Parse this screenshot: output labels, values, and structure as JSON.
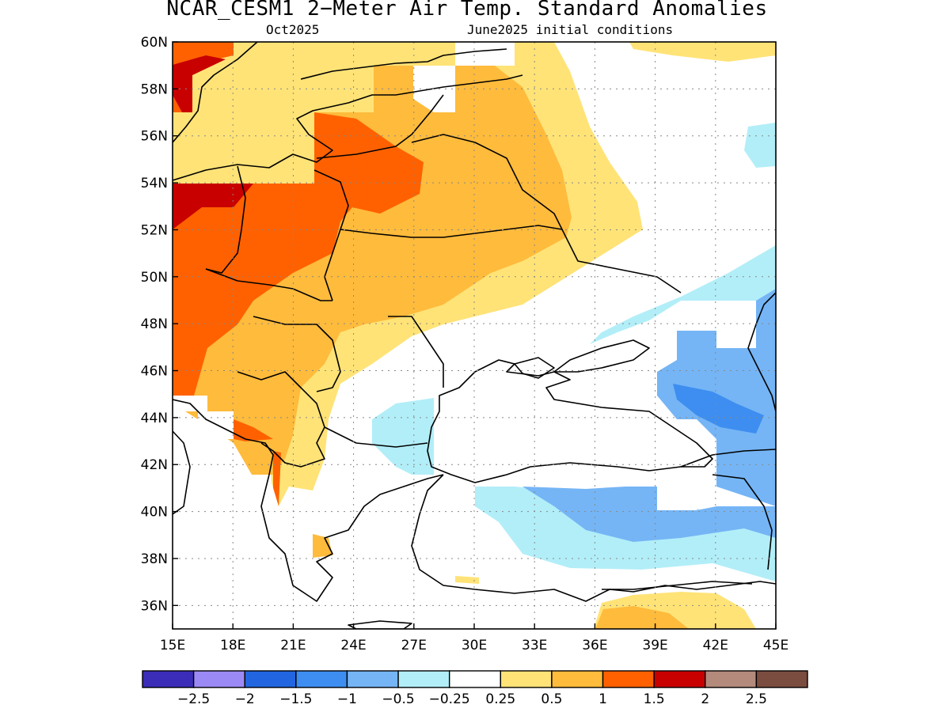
{
  "title": "NCAR_CESM1 2−Meter Air Temp. Standard Anomalies",
  "subtitle_left": "Oct2025",
  "subtitle_right": "June2025 initial conditions",
  "map": {
    "lon_range": [
      15,
      45
    ],
    "lat_range": [
      35,
      60
    ],
    "grid_lines": true,
    "lat_ticks": [
      "60N",
      "58N",
      "56N",
      "54N",
      "52N",
      "50N",
      "48N",
      "46N",
      "44N",
      "42N",
      "40N",
      "38N",
      "36N"
    ],
    "lon_ticks": [
      "15E",
      "18E",
      "21E",
      "24E",
      "27E",
      "30E",
      "33E",
      "36E",
      "39E",
      "42E",
      "45E"
    ]
  },
  "colorbar": {
    "colors": [
      "#3b2db8",
      "#9b8af5",
      "#2166e0",
      "#3d8ef0",
      "#75b5f5",
      "#b2eef8",
      "#ffffff",
      "#ffe377",
      "#ffbb3c",
      "#ff6100",
      "#c80000",
      "#b38a7c",
      "#7b4d40"
    ],
    "labels": [
      "−2.5",
      "−2",
      "−1.5",
      "−1",
      "−0.5",
      "−0.25",
      "0.25",
      "0.5",
      "1",
      "1.5",
      "2",
      "2.5"
    ]
  }
}
